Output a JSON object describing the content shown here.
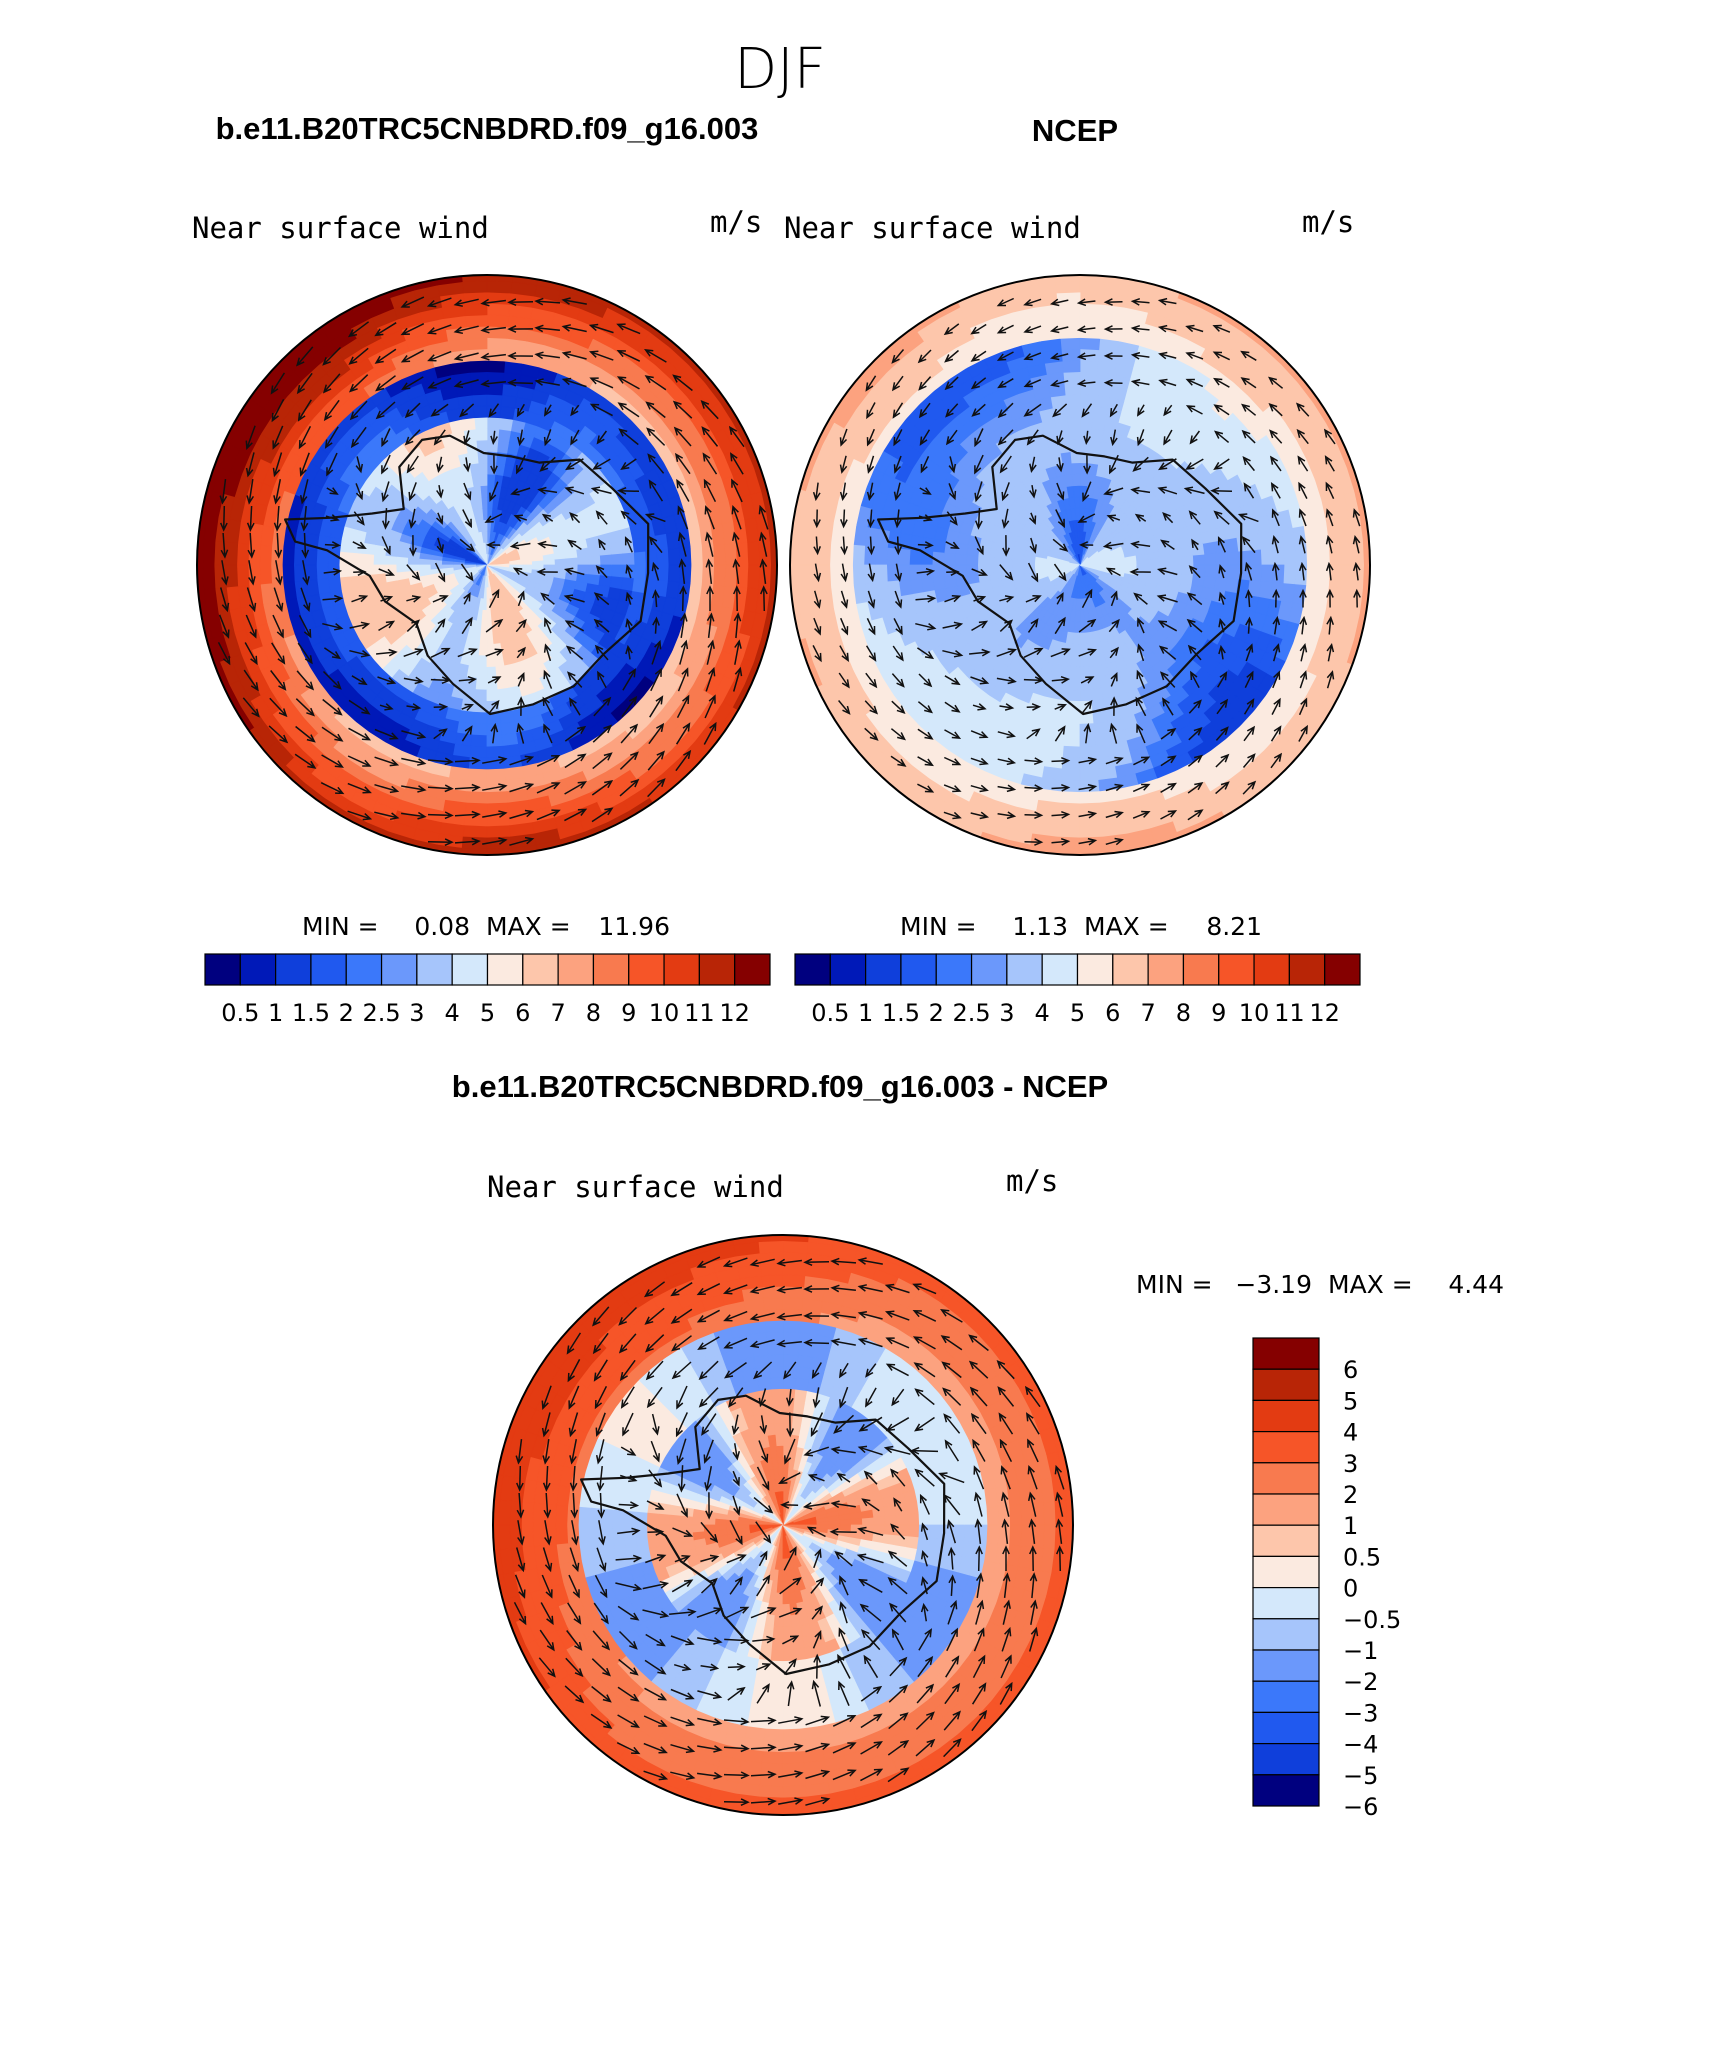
{
  "chart_data": {
    "type": "contour-map-with-vectors",
    "season": "DJF",
    "colors": {
      "abs_levels": [
        "#00007f",
        "#0019b8",
        "#0f3fdb",
        "#2059ef",
        "#3b78fa",
        "#6b98fb",
        "#a6c5fb",
        "#d4e8fb",
        "#fbeae0",
        "#fdc6ab",
        "#fca27f",
        "#f87a4f",
        "#f65528",
        "#e33b12",
        "#b82506",
        "#850000"
      ],
      "diff_levels": [
        "#850000",
        "#b82506",
        "#e33b12",
        "#f65528",
        "#f87a4f",
        "#fca27f",
        "#fdc6ab",
        "#fbeae0",
        "#d4e8fb",
        "#a6c5fb",
        "#6b98fb",
        "#3b78fa",
        "#2059ef",
        "#0f3fdb",
        "#00007f"
      ],
      "coast": "#111111",
      "arrow": "#111111"
    },
    "panels": [
      {
        "id": "model",
        "case": "b.e11.B20TRC5CNBDRD.f09_g16.003",
        "variable": "Near surface wind",
        "units": "m/s",
        "min_label": "MIN =",
        "min": "0.08",
        "max_label": "MAX =",
        "max": "11.96",
        "pattern": "model"
      },
      {
        "id": "obs",
        "case": "NCEP",
        "variable": "Near surface wind",
        "units": "m/s",
        "min_label": "MIN =",
        "min": "1.13",
        "max_label": "MAX =",
        "max": "8.21",
        "pattern": "obs"
      },
      {
        "id": "diff",
        "case": "b.e11.B20TRC5CNBDRD.f09_g16.003 - NCEP",
        "variable": "Near surface wind",
        "units": "m/s",
        "min_label": "MIN =",
        "min": "−3.19",
        "max_label": "MAX =",
        "max": "4.44",
        "pattern": "diff"
      }
    ],
    "abs_colorbar_ticks": [
      "0.5",
      "1",
      "1.5",
      "2",
      "2.5",
      "3",
      "4",
      "5",
      "6",
      "7",
      "8",
      "9",
      "10",
      "11",
      "12"
    ],
    "diff_colorbar_ticks": [
      "6",
      "5",
      "4",
      "3",
      "2",
      "1",
      "0.5",
      "0",
      "−0.5",
      "−1",
      "−2",
      "−3",
      "−4",
      "−5",
      "−6"
    ]
  }
}
